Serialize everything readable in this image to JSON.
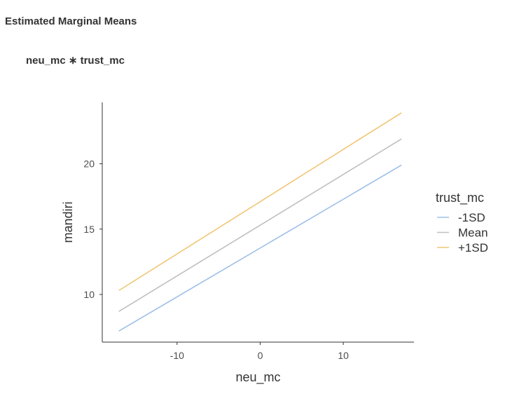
{
  "page": {
    "heading": "Estimated Marginal Means",
    "subheading": "neu_mc ∗ trust_mc"
  },
  "chart_data": {
    "type": "line",
    "xlabel": "neu_mc",
    "ylabel": "mandiri",
    "xlim": [
      -19,
      18.5
    ],
    "ylim": [
      6.35,
      24.7
    ],
    "xticks": [
      -10,
      0,
      10
    ],
    "xtick_labels": [
      "-10",
      "0",
      "10"
    ],
    "yticks": [
      10,
      15,
      20
    ],
    "ytick_labels": [
      "10",
      "15",
      "20"
    ],
    "grid": false,
    "legend": {
      "title": "trust_mc",
      "position": "right"
    },
    "series": [
      {
        "name": "-1SD",
        "color": "#9dbfe8",
        "x": [
          -17,
          17
        ],
        "y": [
          7.2,
          19.9
        ]
      },
      {
        "name": "Mean",
        "color": "#bfbfbf",
        "x": [
          -17,
          17
        ],
        "y": [
          8.7,
          21.9
        ]
      },
      {
        "name": "+1SD",
        "color": "#f0c676",
        "x": [
          -17,
          17
        ],
        "y": [
          10.3,
          23.9
        ]
      }
    ]
  }
}
